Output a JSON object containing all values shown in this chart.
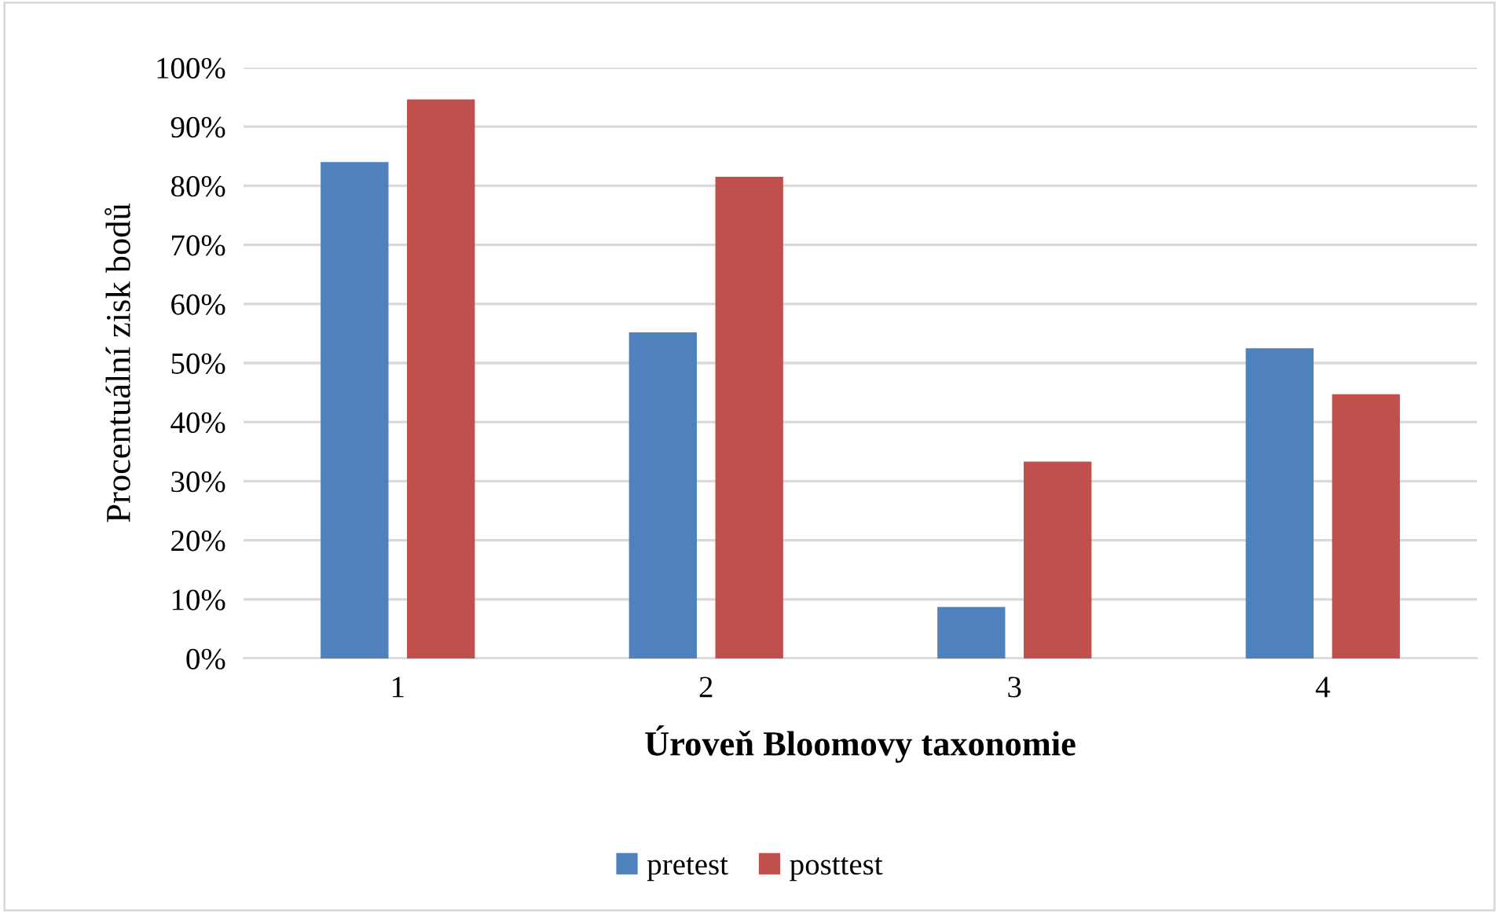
{
  "chart_data": {
    "type": "bar",
    "xlabel": "Úroveň Bloomovy taxonomie",
    "ylabel": "Procentuální zisk bodů",
    "categories": [
      "1",
      "2",
      "3",
      "4"
    ],
    "series": [
      {
        "name": "pretest",
        "color": "#4f81bd",
        "values": [
          84.0,
          55.2,
          8.7,
          52.5
        ]
      },
      {
        "name": "posttest",
        "color": "#c0504d",
        "values": [
          94.6,
          81.5,
          33.3,
          44.7
        ]
      }
    ],
    "ylim": [
      0,
      100
    ],
    "yticks": [
      {
        "value": 0,
        "label": "0%"
      },
      {
        "value": 10,
        "label": "10%"
      },
      {
        "value": 20,
        "label": "20%"
      },
      {
        "value": 30,
        "label": "30%"
      },
      {
        "value": 40,
        "label": "40%"
      },
      {
        "value": 50,
        "label": "50%"
      },
      {
        "value": 60,
        "label": "60%"
      },
      {
        "value": 70,
        "label": "70%"
      },
      {
        "value": 80,
        "label": "80%"
      },
      {
        "value": 90,
        "label": "90%"
      },
      {
        "value": 100,
        "label": "100%"
      }
    ],
    "grid": "y",
    "legend": "bottom"
  }
}
